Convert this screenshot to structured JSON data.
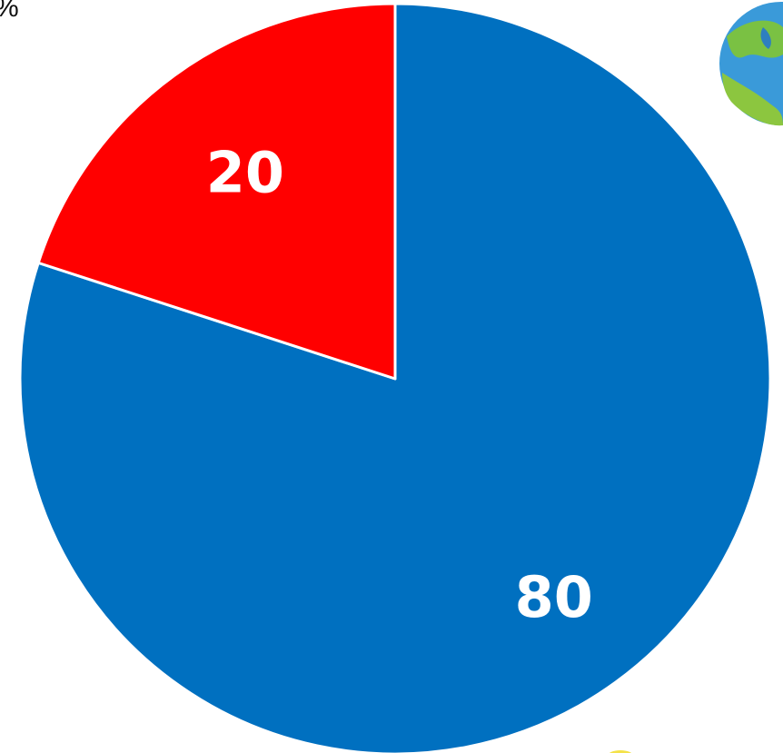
{
  "corner_text": "%",
  "chart_data": {
    "type": "pie",
    "title": "",
    "categories": [
      "",
      ""
    ],
    "values": [
      80,
      20
    ],
    "labels": [
      "80",
      "20"
    ],
    "colors": [
      "#0070c0",
      "#ff0000"
    ],
    "label_color": "#ffffff",
    "start": "12 o'clock",
    "direction": "clockwise",
    "legend": "none"
  },
  "decorations": {
    "top_right": "globe-icon",
    "bottom_center": "yellow-circle-icon"
  }
}
